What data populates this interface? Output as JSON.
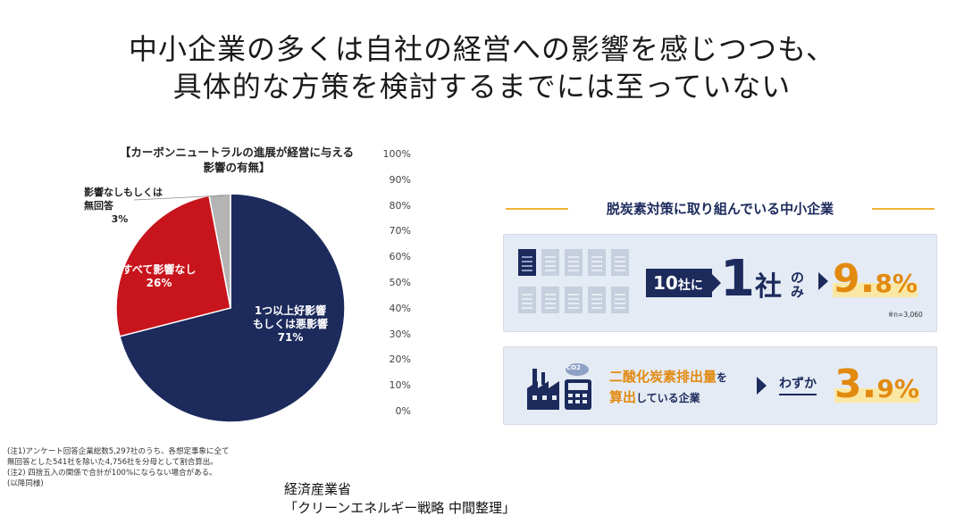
{
  "title": {
    "line1": "中小企業の多くは自社の経営への影響を感じつつも、",
    "line2": "具体的な方策を検討するまでには至っていない"
  },
  "chart_data": {
    "type": "pie",
    "title_line1": "【カーボンニュートラルの進展が経営に与える",
    "title_line2": "影響の有無】",
    "slices": [
      {
        "label_line1": "1つ以上好影響",
        "label_line2": "もしくは悪影響",
        "value": 71,
        "value_label": "71%",
        "color": "#1c2a5c"
      },
      {
        "label_line1": "すべて影響なし",
        "label_line2": "",
        "value": 26,
        "value_label": "26%",
        "color": "#c8141c"
      },
      {
        "label_line1": "影響なしもしくは",
        "label_line2": "無回答",
        "value": 3,
        "value_label": "3%",
        "color": "#b4b4b4"
      }
    ],
    "axis_ticks": [
      "100%",
      "90%",
      "80%",
      "70%",
      "60%",
      "50%",
      "40%",
      "30%",
      "20%",
      "10%",
      "0%"
    ]
  },
  "notes": [
    "(注1)アンケート回答企業総数5,297社のうち、各想定事象に全て",
    "無回答とした541社を除いた4,756社を分母として割合算出。",
    "(注2) 四捨五入の関係で合計が100%にならない場合がある。",
    "(以降同様)"
  ],
  "source": {
    "line1": "経済産業省",
    "line2": "「クリーンエネルギー戦略 中間整理」"
  },
  "panel": {
    "heading": "脱炭素対策に取り組んでいる中小企業",
    "stat1": {
      "ten": "10",
      "ten_unit": "社に",
      "one": "1",
      "one_unit": "社",
      "only": "のみ",
      "pct_int": "9.",
      "pct_dec": "8",
      "pct_sign": "%",
      "n_note": "※n=3,060"
    },
    "stat2": {
      "line1_acc": "二酸化炭素排出量",
      "line1_rest": "を",
      "line2_acc": "算出",
      "line2_rest": "している企業",
      "only": "わずか",
      "pct_int": "3.",
      "pct_dec": "9",
      "pct_sign": "%",
      "icon_label": "CO2"
    }
  },
  "colors": {
    "navy": "#1c2a5c",
    "red": "#c8141c",
    "gray": "#b4b4b4",
    "orange": "#e28a10"
  }
}
